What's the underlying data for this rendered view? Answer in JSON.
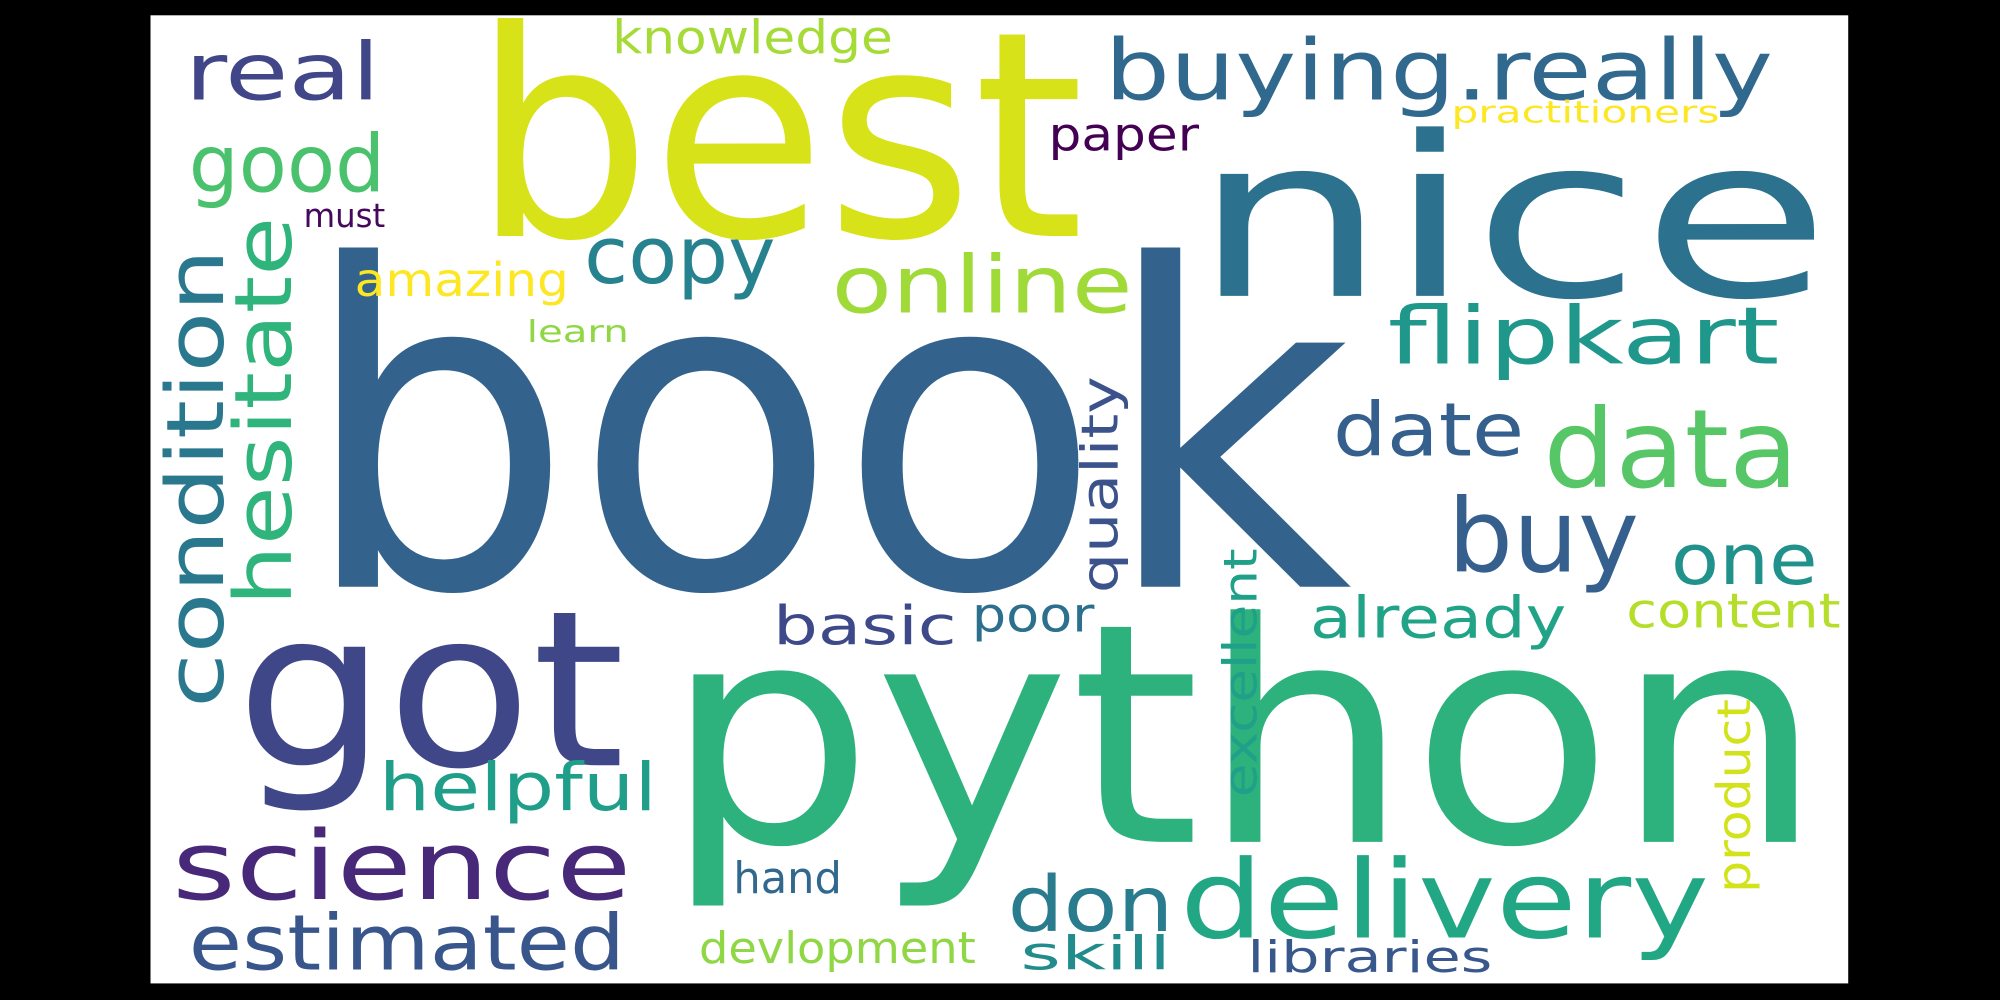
{
  "words": [
    {
      "text": "book",
      "color": "#33638d"
    },
    {
      "text": "python",
      "color": "#2db27d"
    },
    {
      "text": "best",
      "color": "#d8e219"
    },
    {
      "text": "nice",
      "color": "#2c728e"
    },
    {
      "text": "got",
      "color": "#3f4788"
    },
    {
      "text": "science",
      "color": "#482878"
    },
    {
      "text": "estimated",
      "color": "#39568c"
    },
    {
      "text": "delivery",
      "color": "#22a785"
    },
    {
      "text": "don",
      "color": "#297b8e"
    },
    {
      "text": "data",
      "color": "#56c667"
    },
    {
      "text": "buy",
      "color": "#355f8d"
    },
    {
      "text": "date",
      "color": "#355f8d"
    },
    {
      "text": "one",
      "color": "#21918c"
    },
    {
      "text": "flipkart",
      "color": "#1f988b"
    },
    {
      "text": "buying.really",
      "color": "#31688e"
    },
    {
      "text": "real",
      "color": "#404688"
    },
    {
      "text": "good",
      "color": "#4ac16d"
    },
    {
      "text": "copy",
      "color": "#26828e"
    },
    {
      "text": "online",
      "color": "#a0da39"
    },
    {
      "text": "paper",
      "color": "#440154"
    },
    {
      "text": "knowledge",
      "color": "#a5db36"
    },
    {
      "text": "practitioners",
      "color": "#fde725"
    },
    {
      "text": "must",
      "color": "#46085c"
    },
    {
      "text": "amazing",
      "color": "#fde725"
    },
    {
      "text": "learn",
      "color": "#8fd744"
    },
    {
      "text": "condition",
      "color": "#2a788e"
    },
    {
      "text": "hesitate",
      "color": "#2fb47c"
    },
    {
      "text": "quality",
      "color": "#3b528b"
    },
    {
      "text": "excellent",
      "color": "#1fa088"
    },
    {
      "text": "product",
      "color": "#d2e21b"
    },
    {
      "text": "helpful",
      "color": "#1f9e89"
    },
    {
      "text": "basic",
      "color": "#3e4989"
    },
    {
      "text": "poor",
      "color": "#2d708e"
    },
    {
      "text": "already",
      "color": "#20a386"
    },
    {
      "text": "content",
      "color": "#b5de2b"
    },
    {
      "text": "hand",
      "color": "#31688e"
    },
    {
      "text": "devlopment",
      "color": "#8fd744"
    },
    {
      "text": "skill",
      "color": "#228c8d"
    },
    {
      "text": "libraries",
      "color": "#38588c"
    }
  ]
}
